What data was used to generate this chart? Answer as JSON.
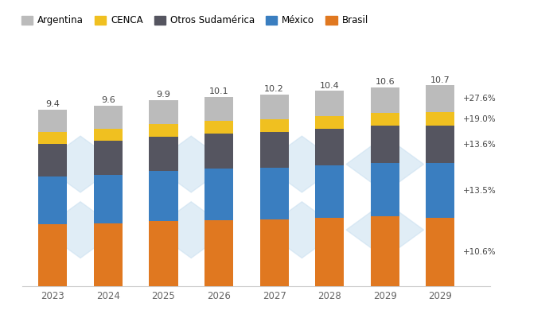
{
  "x_labels": [
    "2023",
    "2024",
    "2025",
    "2026",
    "2027",
    "2028",
    "2029",
    "2029"
  ],
  "totals": [
    9.4,
    9.6,
    9.9,
    10.1,
    10.2,
    10.4,
    10.6,
    10.7
  ],
  "brasil": [
    3.3,
    3.36,
    3.47,
    3.54,
    3.57,
    3.64,
    3.71,
    3.65
  ],
  "mexico": [
    2.55,
    2.59,
    2.67,
    2.73,
    2.75,
    2.81,
    2.86,
    2.9
  ],
  "otros_sudamerica": [
    1.75,
    1.79,
    1.84,
    1.88,
    1.9,
    1.94,
    1.97,
    1.99
  ],
  "cenca": [
    0.62,
    0.63,
    0.65,
    0.66,
    0.67,
    0.68,
    0.69,
    0.74
  ],
  "argentina": [
    1.18,
    1.23,
    1.27,
    1.3,
    1.31,
    1.33,
    1.37,
    1.42
  ],
  "brasil_color": "#E07820",
  "mexico_color": "#3A7EC0",
  "otros_color": "#555560",
  "cenca_color": "#F0C020",
  "argentina_color": "#BBBBBB",
  "annotations": [
    "+27.6%",
    "+19.0%",
    "+13.6%",
    "+13.5%",
    "+10.6%"
  ],
  "legend_labels": [
    "Argentina",
    "CENCA",
    "Otros Sudamérica",
    "México",
    "Brasil"
  ],
  "bg_color": "#ffffff",
  "watermark_color": "#c8dff0"
}
